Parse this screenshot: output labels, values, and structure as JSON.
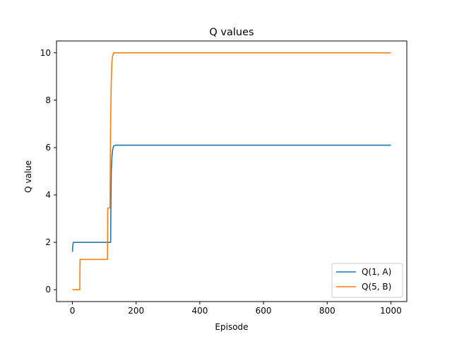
{
  "chart_data": {
    "type": "line",
    "title": "Q values",
    "xlabel": "Episode",
    "ylabel": "Q value",
    "xlim": [
      -50,
      1050
    ],
    "ylim": [
      -0.5,
      10.5
    ],
    "xticks": [
      0,
      200,
      400,
      600,
      800,
      1000
    ],
    "yticks": [
      0,
      2,
      4,
      6,
      8,
      10
    ],
    "legend_position": "lower-right",
    "grid": false,
    "series": [
      {
        "name": "Q(1, A)",
        "color": "#1f77b4",
        "x": [
          0,
          1,
          2,
          3,
          5,
          10,
          50,
          100,
          120,
          121,
          122,
          124,
          126,
          128,
          130,
          135,
          140,
          200,
          400,
          600,
          800,
          1000
        ],
        "y": [
          1.6,
          1.82,
          1.95,
          2.0,
          2.0,
          2.0,
          2.0,
          2.0,
          2.0,
          3.8,
          5.0,
          5.6,
          5.88,
          6.0,
          6.07,
          6.1,
          6.1,
          6.1,
          6.1,
          6.1,
          6.1,
          6.1
        ]
      },
      {
        "name": "Q(5, B)",
        "color": "#ff7f0e",
        "x": [
          0,
          10,
          20,
          23,
          24,
          50,
          80,
          110,
          111,
          118,
          119,
          120,
          122,
          124,
          126,
          128,
          130,
          135,
          140,
          200,
          400,
          600,
          800,
          1000
        ],
        "y": [
          0,
          0,
          0,
          0,
          1.28,
          1.28,
          1.28,
          1.28,
          3.45,
          3.45,
          5.5,
          7.2,
          8.8,
          9.6,
          9.85,
          9.95,
          10.0,
          10.0,
          10.0,
          10.0,
          10.0,
          10.0,
          10.0,
          10.0
        ]
      }
    ]
  }
}
